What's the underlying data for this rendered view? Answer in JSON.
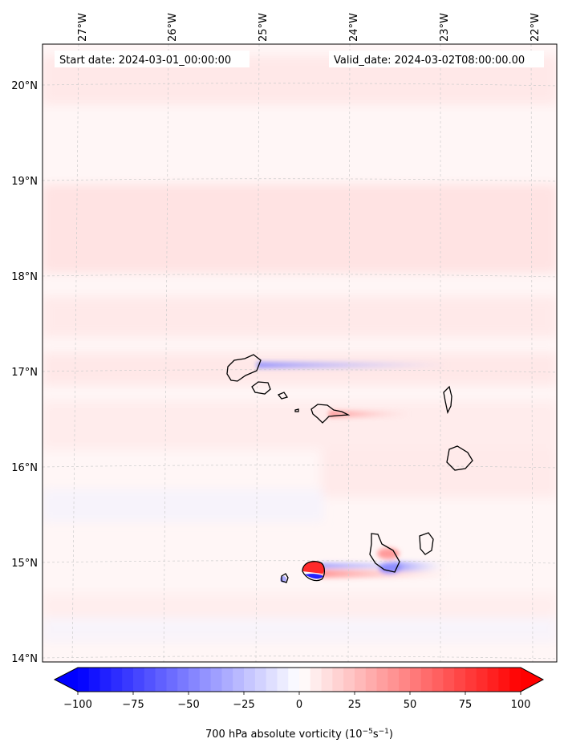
{
  "header": {
    "start_date": "Start date: 2024-03-01_00:00:00",
    "valid_date": "Valid_date: 2024-03-02T08:00:00.00"
  },
  "map": {
    "lon_labels": [
      "27°W",
      "26°W",
      "25°W",
      "24°W",
      "23°W",
      "22°W"
    ],
    "lat_labels": [
      "20°N",
      "19°N",
      "18°N",
      "17°N",
      "16°N",
      "15°N",
      "14°N"
    ],
    "gridlines": true,
    "field": "700 hPa absolute vorticity",
    "colormap": "bwr",
    "colors": {
      "negative": "#0000ff",
      "neutral": "#ffffff",
      "positive": "#ff0000",
      "coast": "#000000"
    }
  },
  "colorbar": {
    "ticks": [
      "−100",
      "−75",
      "−50",
      "−25",
      "0",
      "25",
      "50",
      "75",
      "100"
    ],
    "tick_values": [
      -100,
      -75,
      -50,
      -25,
      0,
      25,
      50,
      75,
      100
    ],
    "range": [
      -100,
      100
    ],
    "extend": "both",
    "label_main": "700 hPa absolute vorticity (10",
    "label_exp1": "−5",
    "label_mid": "s",
    "label_exp2": "−1",
    "label_end": ")"
  }
}
